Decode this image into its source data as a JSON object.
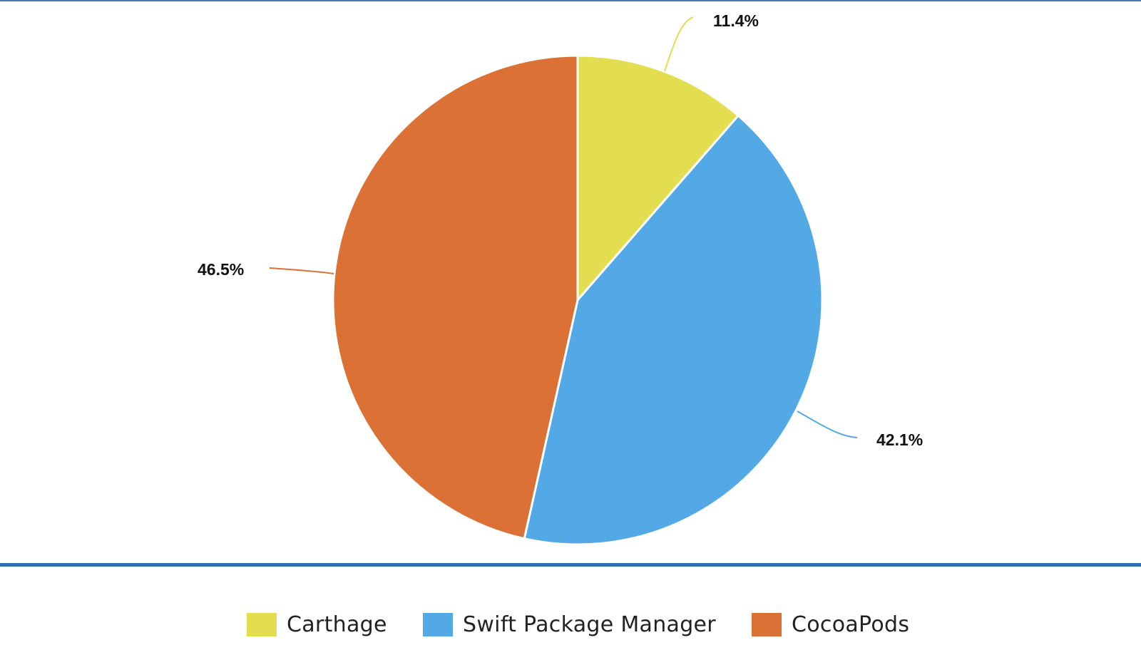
{
  "chart_data": {
    "type": "pie",
    "title": "",
    "categories": [
      "Carthage",
      "Swift Package Manager",
      "CocoaPods"
    ],
    "values": [
      11.4,
      42.1,
      46.5
    ],
    "unit": "%",
    "labels": [
      "11.4%",
      "42.1%",
      "46.5%"
    ],
    "colors": [
      "#e3de4f",
      "#52a9e6",
      "#db7134"
    ],
    "start_angle": "12 o'clock",
    "direction": "clockwise",
    "legend_position": "bottom",
    "data_labels": "outside with leader lines"
  },
  "legend": {
    "items": [
      {
        "label": "Carthage",
        "color": "#e3de4f"
      },
      {
        "label": "Swift Package Manager",
        "color": "#52a9e6"
      },
      {
        "label": "CocoaPods",
        "color": "#db7134"
      }
    ]
  },
  "slice_labels": {
    "carthage": "11.4%",
    "spm": "42.1%",
    "cocoapods": "46.5%"
  },
  "theme": {
    "rule_color": "#2f6db3"
  }
}
